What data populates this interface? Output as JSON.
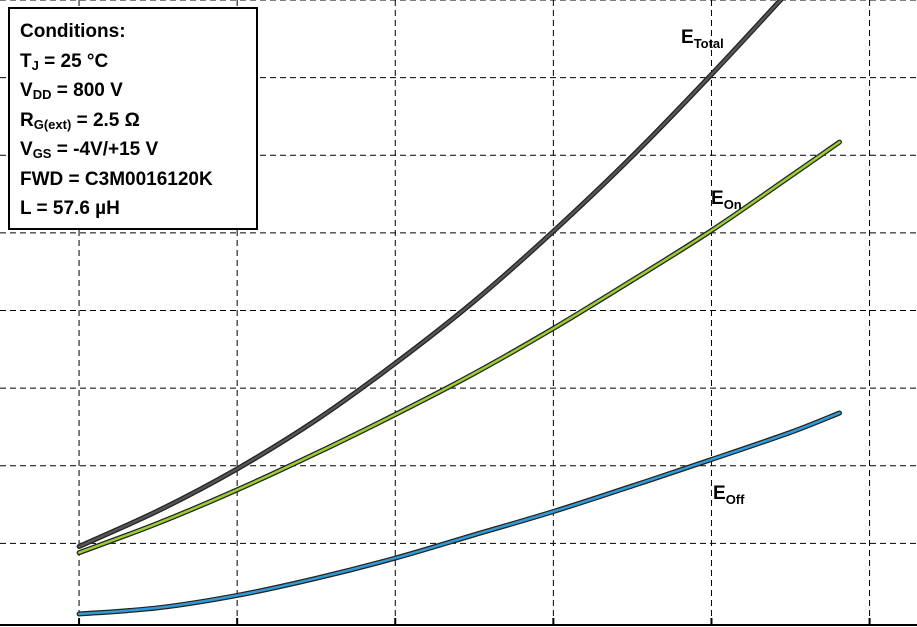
{
  "chart_data": {
    "type": "line",
    "title": "",
    "xlabel": "",
    "ylabel": "",
    "xlim": [
      5,
      63
    ],
    "ylim": [
      0,
      8
    ],
    "grid": true,
    "legend": "none",
    "series": [
      {
        "name": "E_Total",
        "label_main": "E",
        "label_sub": "Total",
        "color": "#555555",
        "x": [
          10,
          15,
          20,
          25,
          30,
          35,
          40,
          45,
          50,
          55,
          58.1
        ],
        "y": [
          0.96,
          1.42,
          1.96,
          2.59,
          3.32,
          4.12,
          5.02,
          5.99,
          7.04,
          8.14,
          8.84
        ]
      },
      {
        "name": "E_On",
        "label_main": "E",
        "label_sub": "On",
        "color": "#9acd32",
        "x": [
          10,
          15,
          20,
          25,
          30,
          35,
          40,
          45,
          50,
          55,
          58.1
        ],
        "y": [
          0.88,
          1.26,
          1.69,
          2.16,
          2.66,
          3.19,
          3.77,
          4.39,
          5.03,
          5.73,
          6.17
        ]
      },
      {
        "name": "E_Off",
        "label_main": "E",
        "label_sub": "Off",
        "color": "#2e9bd6",
        "x": [
          10,
          15,
          20,
          25,
          30,
          35,
          40,
          45,
          50,
          55,
          58.1
        ],
        "y": [
          0.09,
          0.17,
          0.33,
          0.55,
          0.81,
          1.11,
          1.41,
          1.74,
          2.08,
          2.43,
          2.68
        ]
      }
    ]
  },
  "conditions": {
    "title": "Conditions:",
    "lines": [
      {
        "main": "T",
        "sub": "J",
        "rest": " = 25 °C"
      },
      {
        "main": "V",
        "sub": "DD",
        "rest": " = 800 V"
      },
      {
        "main": "R",
        "sub": "G(ext)",
        "rest": " = 2.5 Ω"
      },
      {
        "main": "V",
        "sub": "GS",
        "rest": " = -4V/+15 V"
      },
      {
        "main": "FWD = C3M0016120K",
        "sub": "",
        "rest": ""
      },
      {
        "main": "L = 57.6 µH",
        "sub": "",
        "rest": ""
      }
    ]
  }
}
